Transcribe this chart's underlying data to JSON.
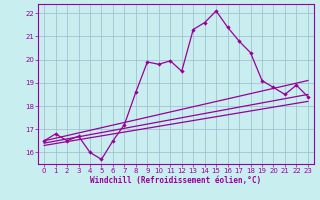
{
  "xlabel": "Windchill (Refroidissement éolien,°C)",
  "bg_color": "#c8eef0",
  "line_color": "#990099",
  "grid_color": "#a0b8cc",
  "xlim": [
    -0.5,
    23.5
  ],
  "ylim": [
    15.5,
    22.4
  ],
  "xticks": [
    0,
    1,
    2,
    3,
    4,
    5,
    6,
    7,
    8,
    9,
    10,
    11,
    12,
    13,
    14,
    15,
    16,
    17,
    18,
    19,
    20,
    21,
    22,
    23
  ],
  "yticks": [
    16,
    17,
    18,
    19,
    20,
    21,
    22
  ],
  "series1_y": [
    16.5,
    16.8,
    16.5,
    16.7,
    16.0,
    15.7,
    16.5,
    17.2,
    18.6,
    19.9,
    19.8,
    19.95,
    19.5,
    21.3,
    21.6,
    22.1,
    21.4,
    20.8,
    20.3,
    19.1,
    18.8,
    18.5,
    18.9,
    18.4
  ],
  "line2_x": [
    0,
    23
  ],
  "line2_y": [
    16.5,
    19.1
  ],
  "line3_x": [
    0,
    23
  ],
  "line3_y": [
    16.4,
    18.5
  ],
  "line4_x": [
    0,
    23
  ],
  "line4_y": [
    16.3,
    18.2
  ]
}
